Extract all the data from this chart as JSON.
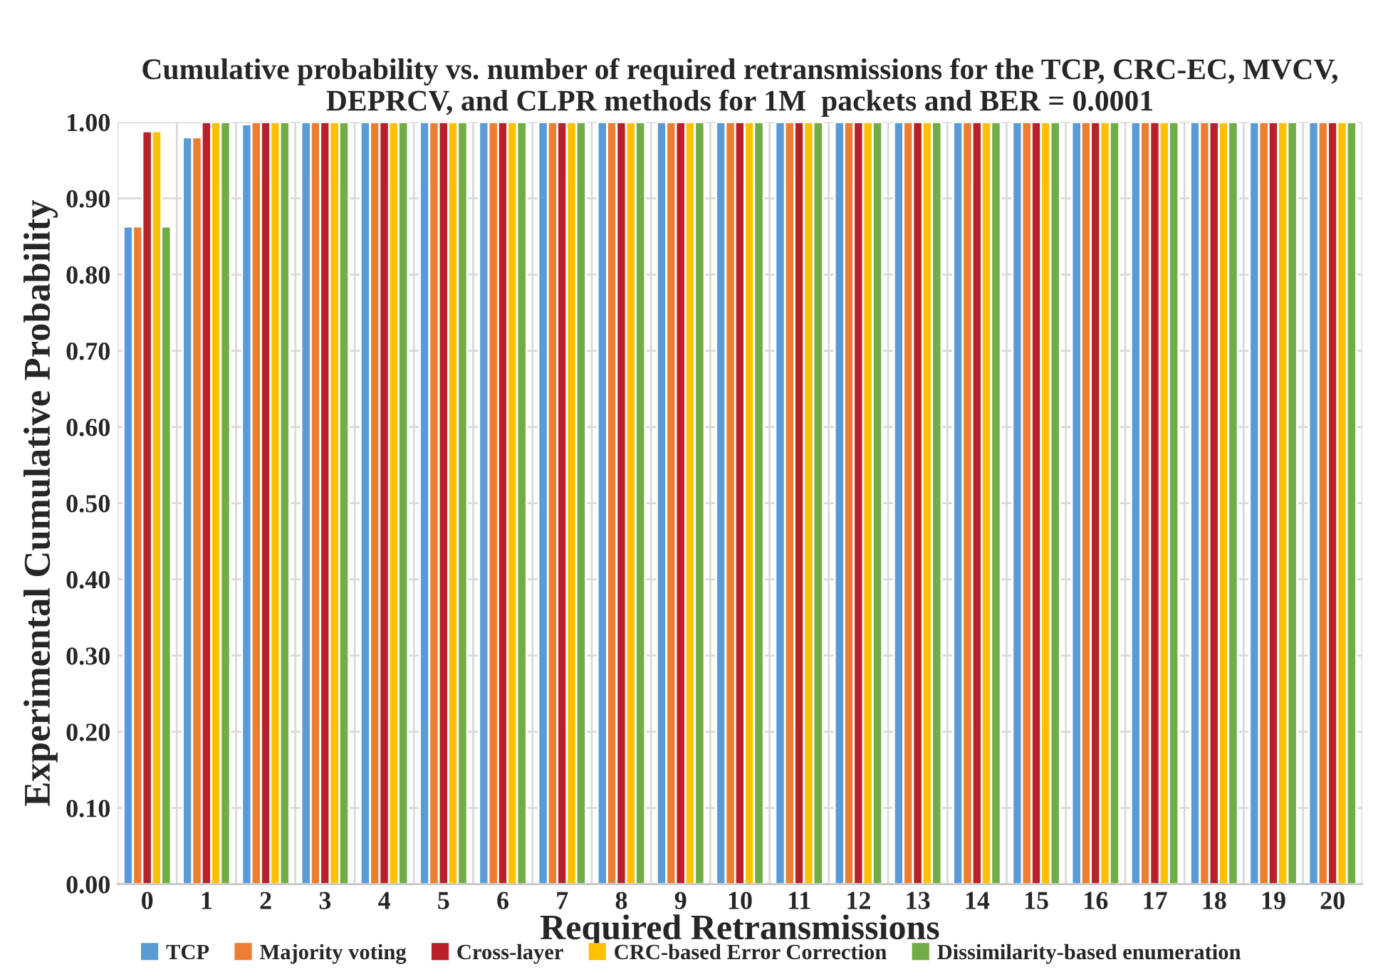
{
  "chart_data": {
    "type": "bar",
    "title": "Cumulative probability vs. number of required retransmissions for the TCP, CRC-EC, MVCV, DEPRCV, and CLPR methods for 1M  packets and BER = 0.0001",
    "xlabel": "Required Retransmissions",
    "ylabel": "Experimental Cumulative Probability",
    "categories": [
      "0",
      "1",
      "2",
      "3",
      "4",
      "5",
      "6",
      "7",
      "8",
      "9",
      "10",
      "11",
      "12",
      "13",
      "14",
      "15",
      "16",
      "17",
      "18",
      "19",
      "20"
    ],
    "series": [
      {
        "name": "TCP",
        "color": "#5b9bd5",
        "values": [
          0.863,
          0.98,
          0.997,
          1,
          1,
          1,
          1,
          1,
          1,
          1,
          1,
          1,
          1,
          1,
          1,
          1,
          1,
          1,
          1,
          1,
          1
        ]
      },
      {
        "name": "Majority voting",
        "color": "#ed7d31",
        "values": [
          0.863,
          0.98,
          1,
          1,
          1,
          1,
          1,
          1,
          1,
          1,
          1,
          1,
          1,
          1,
          1,
          1,
          1,
          1,
          1,
          1,
          1
        ]
      },
      {
        "name": "Cross-layer",
        "color": "#b8202a",
        "values": [
          0.988,
          1,
          1,
          1,
          1,
          1,
          1,
          1,
          1,
          1,
          1,
          1,
          1,
          1,
          1,
          1,
          1,
          1,
          1,
          1,
          1
        ]
      },
      {
        "name": "CRC-based Error Correction",
        "color": "#ffc000",
        "values": [
          0.988,
          1,
          1,
          1,
          1,
          1,
          1,
          1,
          1,
          1,
          1,
          1,
          1,
          1,
          1,
          1,
          1,
          1,
          1,
          1,
          1
        ]
      },
      {
        "name": "Dissimilarity-based enumeration",
        "color": "#70ad47",
        "values": [
          0.863,
          1,
          1,
          1,
          1,
          1,
          1,
          1,
          1,
          1,
          1,
          1,
          1,
          1,
          1,
          1,
          1,
          1,
          1,
          1,
          1
        ]
      }
    ],
    "ylim": [
      0,
      1
    ],
    "yticks": [
      {
        "value": 0,
        "label": "0.00"
      },
      {
        "value": 0.1,
        "label": "0.10"
      },
      {
        "value": 0.2,
        "label": "0.20"
      },
      {
        "value": 0.3,
        "label": "0.30"
      },
      {
        "value": 0.4,
        "label": "0.40"
      },
      {
        "value": 0.5,
        "label": "0.50"
      },
      {
        "value": 0.6,
        "label": "0.60"
      },
      {
        "value": 0.7,
        "label": "0.70"
      },
      {
        "value": 0.8,
        "label": "0.80"
      },
      {
        "value": 0.9,
        "label": "0.90"
      },
      {
        "value": 1,
        "label": "1.00"
      }
    ],
    "grid": true,
    "legend": "bottom"
  }
}
